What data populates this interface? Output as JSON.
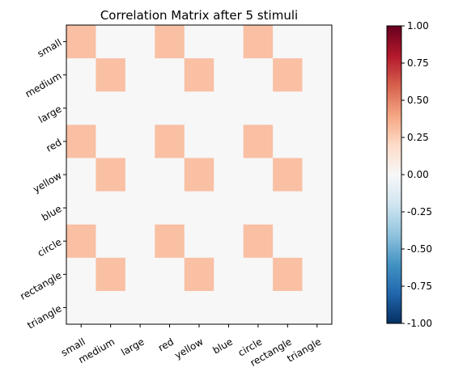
{
  "chart_data": {
    "type": "heatmap",
    "title": "Correlation Matrix after 5 stimuli",
    "row_labels": [
      "small",
      "medium",
      "large",
      "red",
      "yellow",
      "blue",
      "circle",
      "rectangle",
      "triangle"
    ],
    "col_labels": [
      "small",
      "medium",
      "large",
      "red",
      "yellow",
      "blue",
      "circle",
      "rectangle",
      "triangle"
    ],
    "values": [
      [
        0.3,
        0,
        0,
        0.3,
        0,
        0,
        0.3,
        0,
        0
      ],
      [
        0,
        0.3,
        0,
        0,
        0.3,
        0,
        0,
        0.3,
        0
      ],
      [
        0,
        0,
        0,
        0,
        0,
        0,
        0,
        0,
        0
      ],
      [
        0.3,
        0,
        0,
        0.3,
        0,
        0,
        0.3,
        0,
        0
      ],
      [
        0,
        0.3,
        0,
        0,
        0.3,
        0,
        0,
        0.3,
        0
      ],
      [
        0,
        0,
        0,
        0,
        0,
        0,
        0,
        0,
        0
      ],
      [
        0.3,
        0,
        0,
        0.3,
        0,
        0,
        0.3,
        0,
        0
      ],
      [
        0,
        0.3,
        0,
        0,
        0.3,
        0,
        0,
        0.3,
        0
      ],
      [
        0,
        0,
        0,
        0,
        0,
        0,
        0,
        0,
        0
      ]
    ],
    "colormap": "RdBu_r",
    "vmin": -1,
    "vmax": 1,
    "colorbar_ticks": [
      "-1.00",
      "-0.75",
      "-0.50",
      "-0.25",
      "0.00",
      "0.25",
      "0.50",
      "0.75",
      "1.00"
    ],
    "colorbar_tick_values": [
      -1,
      -0.75,
      -0.5,
      -0.25,
      0,
      0.25,
      0.5,
      0.75,
      1
    ],
    "grid": false
  }
}
